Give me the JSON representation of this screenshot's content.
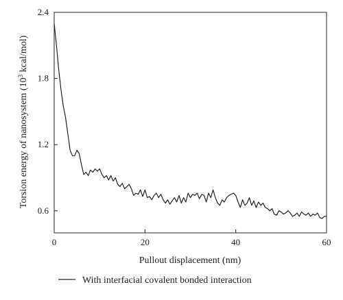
{
  "chart_data": {
    "type": "line",
    "xlabel": "Pullout displacement (nm)",
    "ylabel_prefix": "Torsion energy of nanosystem (10",
    "ylabel_sup": "3",
    "ylabel_suffix": " kcal/mol)",
    "xlim": [
      0,
      60
    ],
    "ylim": [
      0.4,
      2.4
    ],
    "x_ticks": [
      0,
      20,
      40,
      60
    ],
    "x_tick_labels": [
      "0",
      "20",
      "40",
      "60"
    ],
    "y_ticks": [
      0.6,
      1.2,
      1.8,
      2.4
    ],
    "y_tick_labels": [
      "0.6",
      "1.2",
      "1.8",
      "2.4"
    ],
    "grid": false,
    "legend_position": "bottom",
    "series": [
      {
        "name": "With interfacial covalent bonded interaction",
        "color": "#222222",
        "x": [
          0,
          0.5,
          1,
          1.5,
          2,
          2.5,
          3,
          3.5,
          4,
          4.5,
          5,
          5.5,
          6,
          6.5,
          7,
          7.5,
          8,
          8.5,
          9,
          9.5,
          10,
          10.5,
          11,
          11.5,
          12,
          12.5,
          13,
          13.5,
          14,
          14.5,
          15,
          15.5,
          16,
          16.5,
          17,
          17.5,
          18,
          18.5,
          19,
          19.5,
          20,
          20.5,
          21,
          21.5,
          22,
          22.5,
          23,
          23.5,
          24,
          24.5,
          25,
          25.5,
          26,
          26.5,
          27,
          27.5,
          28,
          28.5,
          29,
          29.5,
          30,
          30.5,
          31,
          31.5,
          32,
          32.5,
          33,
          33.5,
          34,
          34.5,
          35,
          35.5,
          36,
          36.5,
          37,
          37.5,
          38,
          38.5,
          39,
          39.5,
          40,
          40.5,
          41,
          41.5,
          42,
          42.5,
          43,
          43.5,
          44,
          44.5,
          45,
          45.5,
          46,
          46.5,
          47,
          47.5,
          48,
          48.5,
          49,
          49.5,
          50,
          50.5,
          51,
          51.5,
          52,
          52.5,
          53,
          53.5,
          54,
          54.5,
          55,
          55.5,
          56,
          56.5,
          57,
          57.5,
          58,
          58.5,
          59,
          59.5,
          60
        ],
        "values": [
          2.3,
          2.1,
          1.88,
          1.7,
          1.55,
          1.45,
          1.3,
          1.15,
          1.1,
          1.1,
          1.15,
          1.12,
          1.02,
          0.93,
          0.95,
          0.92,
          0.97,
          0.95,
          0.98,
          0.96,
          0.98,
          0.93,
          0.9,
          0.92,
          0.88,
          0.92,
          0.87,
          0.9,
          0.84,
          0.82,
          0.85,
          0.8,
          0.82,
          0.84,
          0.8,
          0.74,
          0.76,
          0.75,
          0.79,
          0.73,
          0.79,
          0.72,
          0.73,
          0.7,
          0.74,
          0.76,
          0.72,
          0.75,
          0.7,
          0.67,
          0.7,
          0.66,
          0.69,
          0.72,
          0.68,
          0.74,
          0.67,
          0.72,
          0.68,
          0.76,
          0.72,
          0.75,
          0.74,
          0.76,
          0.71,
          0.75,
          0.74,
          0.68,
          0.76,
          0.72,
          0.79,
          0.72,
          0.67,
          0.65,
          0.7,
          0.68,
          0.72,
          0.74,
          0.75,
          0.76,
          0.74,
          0.68,
          0.63,
          0.7,
          0.65,
          0.67,
          0.72,
          0.65,
          0.69,
          0.63,
          0.68,
          0.65,
          0.67,
          0.63,
          0.62,
          0.6,
          0.62,
          0.57,
          0.56,
          0.6,
          0.59,
          0.57,
          0.58,
          0.6,
          0.58,
          0.55,
          0.56,
          0.58,
          0.55,
          0.59,
          0.57,
          0.56,
          0.58,
          0.55,
          0.57,
          0.56,
          0.58,
          0.54,
          0.53,
          0.55,
          0.55
        ]
      }
    ]
  }
}
